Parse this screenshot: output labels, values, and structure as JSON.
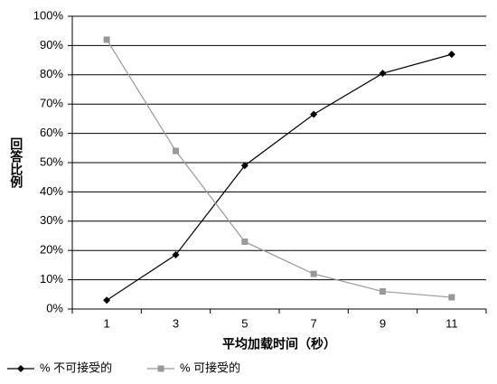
{
  "chart_data": {
    "type": "line",
    "x_label": "平均加载时间（秒）",
    "y_label": "回答比例",
    "categories": [
      "1",
      "3",
      "5",
      "7",
      "9",
      "11"
    ],
    "series": [
      {
        "name": "% 不可接受的",
        "color": "#000000",
        "marker": "diamond",
        "values": [
          3,
          18.5,
          49,
          66.5,
          80.5,
          87
        ]
      },
      {
        "name": "% 可接受的",
        "color": "#999999",
        "marker": "square",
        "values": [
          92,
          54,
          23,
          12,
          6,
          4
        ]
      }
    ],
    "ylim": [
      0,
      100
    ],
    "yticks": [
      {
        "value": 0,
        "label": "0%"
      },
      {
        "value": 10,
        "label": "10%"
      },
      {
        "value": 20,
        "label": "20%"
      },
      {
        "value": 30,
        "label": "30%"
      },
      {
        "value": 40,
        "label": "40%"
      },
      {
        "value": 50,
        "label": "50%"
      },
      {
        "value": 60,
        "label": "60%"
      },
      {
        "value": 70,
        "label": "70%"
      },
      {
        "value": 80,
        "label": "80%"
      },
      {
        "value": 90,
        "label": "90%"
      },
      {
        "value": 100,
        "label": "100%"
      }
    ],
    "grid": true,
    "legend": "bottom-left"
  }
}
